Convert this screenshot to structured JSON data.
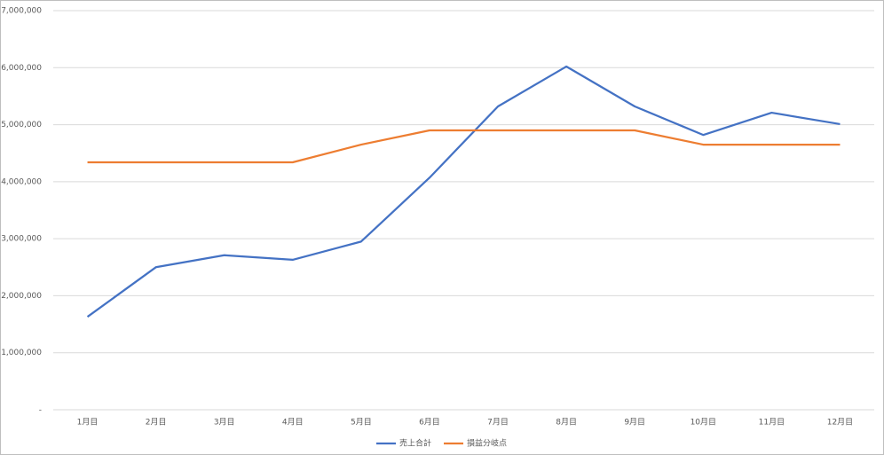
{
  "chart_data": {
    "type": "line",
    "categories": [
      "1月目",
      "2月目",
      "3月目",
      "4月目",
      "5月目",
      "6月目",
      "7月目",
      "8月目",
      "9月目",
      "10月目",
      "11月目",
      "12月目"
    ],
    "series": [
      {
        "name": "売上合計",
        "color": "#4472c4",
        "values": [
          1630000,
          2500000,
          2710000,
          2630000,
          2950000,
          4070000,
          5320000,
          6020000,
          5320000,
          4820000,
          5210000,
          5010000
        ]
      },
      {
        "name": "損益分岐点",
        "color": "#ed7d31",
        "values": [
          4340000,
          4340000,
          4340000,
          4340000,
          4650000,
          4900000,
          4900000,
          4900000,
          4900000,
          4650000,
          4650000,
          4650000
        ]
      }
    ],
    "ylim": [
      0,
      7000000
    ],
    "yticks": [
      {
        "value": 0,
        "label": "-"
      },
      {
        "value": 1000000,
        "label": "1,000,000"
      },
      {
        "value": 2000000,
        "label": "2,000,000"
      },
      {
        "value": 3000000,
        "label": "3,000,000"
      },
      {
        "value": 4000000,
        "label": "4,000,000"
      },
      {
        "value": 5000000,
        "label": "5,000,000"
      },
      {
        "value": 6000000,
        "label": "6,000,000"
      },
      {
        "value": 7000000,
        "label": "7,000,000"
      }
    ],
    "grid": true,
    "legend": "bottom"
  }
}
